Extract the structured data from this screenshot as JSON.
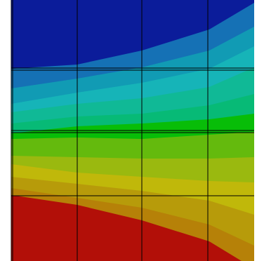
{
  "contour_colors": {
    "band_1": "#0b1c9a",
    "band_2": "#1571b5",
    "band_3": "#119bb4",
    "band_4": "#16b4b8",
    "band_5": "#10b996",
    "band_6": "#07ba76",
    "band_7": "#08bd08",
    "band_8": "#64ba0d",
    "band_9": "#9ab90f",
    "band_10": "#c0b80a",
    "band_11": "#b79b0a",
    "band_12": "#b68108",
    "band_13": "#b20f08"
  },
  "mesh_line_color": "#000000"
}
